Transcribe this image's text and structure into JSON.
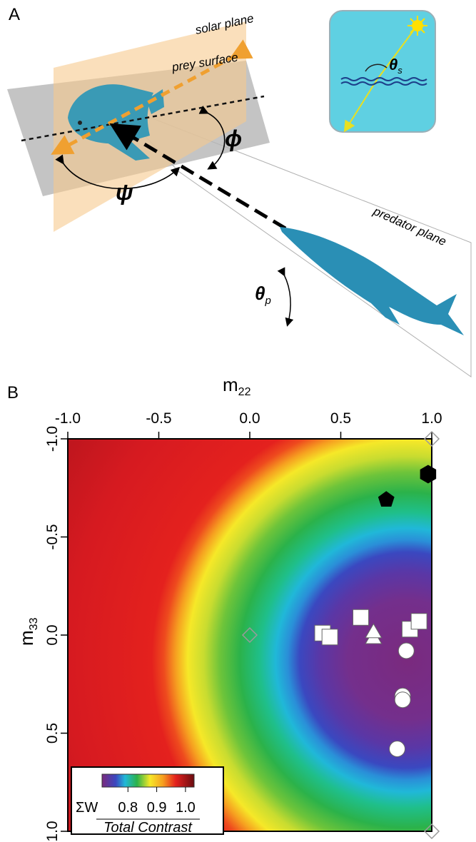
{
  "panel_a": {
    "label": "A",
    "solar_plane": "solar plane",
    "prey_surface": "prey surface",
    "phi": "ϕ",
    "psi": "ψ",
    "theta_p": {
      "symbol": "θ",
      "subscript": "p"
    },
    "theta_s": {
      "symbol": "θ",
      "subscript": "s"
    },
    "predator_plane": "predator plane"
  },
  "chart_data": {
    "type": "scatter",
    "panel_label": "B",
    "xlabel": {
      "text": "m",
      "subscript": "22"
    },
    "ylabel": {
      "text": "m",
      "subscript": "33"
    },
    "xaxis_position": "top",
    "xlim": [
      -1,
      1
    ],
    "xticks": [
      {
        "value": -1,
        "label": "-1.0"
      },
      -0.5,
      {
        "value": 0,
        "label": "0.0"
      },
      0.5,
      {
        "value": 1,
        "label": "1.0"
      }
    ],
    "ylim": [
      1,
      -1
    ],
    "yticks": [
      {
        "value": -1,
        "label": "-1.0"
      },
      -0.5,
      {
        "value": 0,
        "label": "0.0"
      },
      0.5,
      {
        "value": 1,
        "label": "1.0"
      }
    ],
    "series": [
      {
        "marker": "diamond",
        "color": "#9a9a9a",
        "x": [
          1.0,
          0.0,
          1.0
        ],
        "values": [
          -1.0,
          0.0,
          1.0
        ]
      },
      {
        "marker": "hexagon",
        "color": "#000000",
        "x": [
          0.98
        ],
        "values": [
          -0.82
        ]
      },
      {
        "marker": "pentagon",
        "color": "#000000",
        "x": [
          0.75
        ],
        "values": [
          -0.69
        ]
      },
      {
        "marker": "square",
        "color": "#ffffff",
        "x": [
          0.4,
          0.44,
          0.61,
          0.88,
          0.93
        ],
        "values": [
          -0.01,
          0.01,
          -0.09,
          -0.03,
          -0.07
        ]
      },
      {
        "marker": "triangle",
        "color": "#ffffff",
        "x": [
          0.68,
          0.68
        ],
        "values": [
          0.02,
          -0.01
        ]
      },
      {
        "marker": "circle",
        "color": "#ffffff",
        "x": [
          0.86,
          0.84,
          0.84,
          0.81
        ],
        "values": [
          0.08,
          0.31,
          0.33,
          0.58
        ]
      }
    ],
    "colorbar": {
      "label": "ΣW",
      "title": "Total Contrast",
      "clim": [
        0.71,
        1.03
      ],
      "ticks": [
        {
          "value": 0.8,
          "label": "0.8"
        },
        {
          "value": 0.9,
          "label": "0.9"
        },
        {
          "value": 1.0,
          "label": "1.0"
        }
      ]
    }
  }
}
